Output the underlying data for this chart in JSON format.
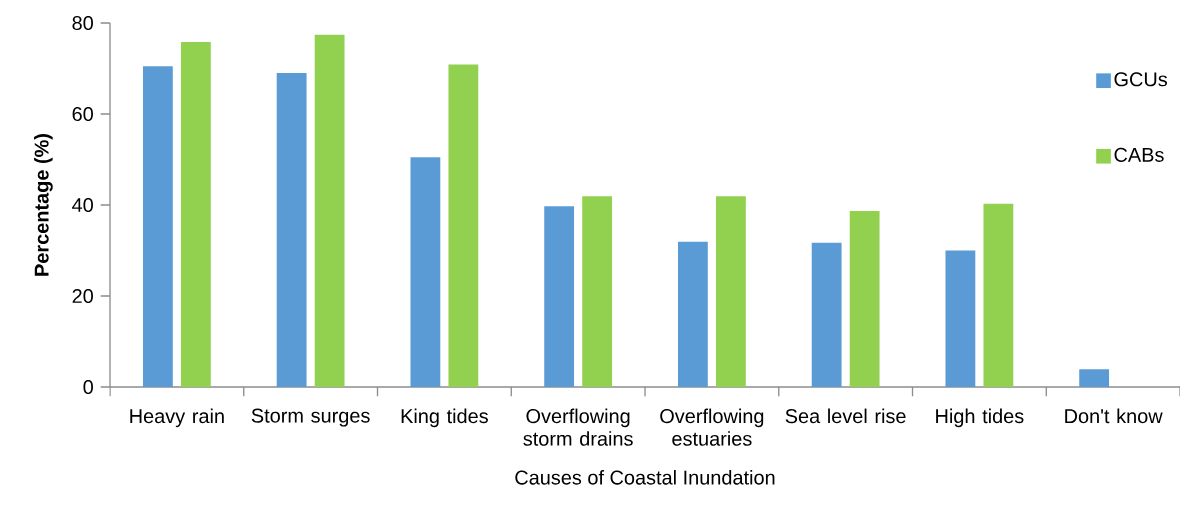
{
  "chart_data": {
    "type": "bar",
    "xlabel": "Causes of Coastal Inundation",
    "ylabel": "Percentage (%)",
    "categories": [
      "Heavy rain",
      "Storm surges",
      "King tides",
      "Overflowing storm drains",
      "Overflowing estuaries",
      "Sea level rise",
      "High tides",
      "Don't know"
    ],
    "series": [
      {
        "name": "GCUs",
        "color": "#5b9bd5",
        "values": [
          70.5,
          69.0,
          50.5,
          39.7,
          31.9,
          31.7,
          30.0,
          3.9
        ]
      },
      {
        "name": "CABs",
        "color": "#92d050",
        "values": [
          75.8,
          77.4,
          70.9,
          41.9,
          41.9,
          38.7,
          40.3,
          null
        ]
      }
    ],
    "ylim": [
      0,
      80
    ],
    "yticks": [
      0,
      20,
      40,
      60,
      80
    ],
    "legend": "right"
  }
}
